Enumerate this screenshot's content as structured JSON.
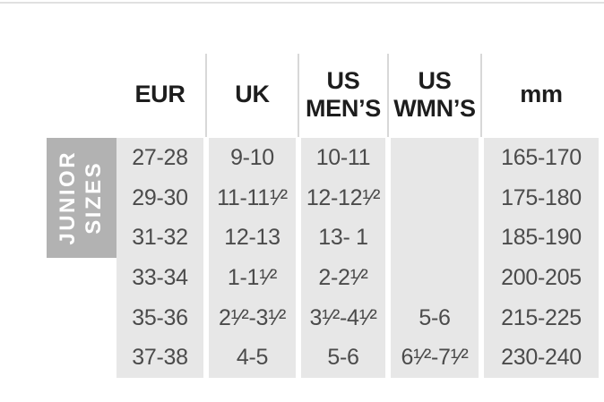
{
  "table": {
    "group_label": "JUNIOR SIZES",
    "group_label_line1": "JUNIOR",
    "group_label_line2": "SIZES",
    "columns": [
      {
        "id": "eur",
        "label": "EUR"
      },
      {
        "id": "uk",
        "label": "UK"
      },
      {
        "id": "us_mens",
        "label": "US MEN’S"
      },
      {
        "id": "us_wmns",
        "label": "US WMN’S"
      },
      {
        "id": "mm",
        "label": "mm"
      }
    ],
    "rows": [
      {
        "eur": "27-28",
        "uk": "9-10",
        "us_mens": "10-11",
        "us_wmns": "",
        "mm": "165-170"
      },
      {
        "eur": "29-30",
        "uk": "11-11¹⁄²",
        "us_mens": "12-12¹⁄²",
        "us_wmns": "",
        "mm": "175-180"
      },
      {
        "eur": "31-32",
        "uk": "12-13",
        "us_mens": "13- 1",
        "us_wmns": "",
        "mm": "185-190"
      },
      {
        "eur": "33-34",
        "uk": "1-1¹⁄²",
        "us_mens": "2-2¹⁄²",
        "us_wmns": "",
        "mm": "200-205"
      },
      {
        "eur": "35-36",
        "uk": "2¹⁄²-3¹⁄²",
        "us_mens": "3¹⁄²-4¹⁄²",
        "us_wmns": "5-6",
        "mm": "215-225"
      },
      {
        "eur": "37-38",
        "uk": "4-5",
        "us_mens": "5-6",
        "us_wmns": "6¹⁄²-7¹⁄²",
        "mm": "230-240"
      }
    ],
    "colors": {
      "cell_background": "#e7e7e7",
      "group_label_background": "#b2b2b2",
      "group_label_text": "#ffffff",
      "header_text": "#1d1d1d",
      "body_text": "#4b4b4b",
      "divider": "#d8d8d8",
      "top_line": "#e0e0e0"
    }
  }
}
